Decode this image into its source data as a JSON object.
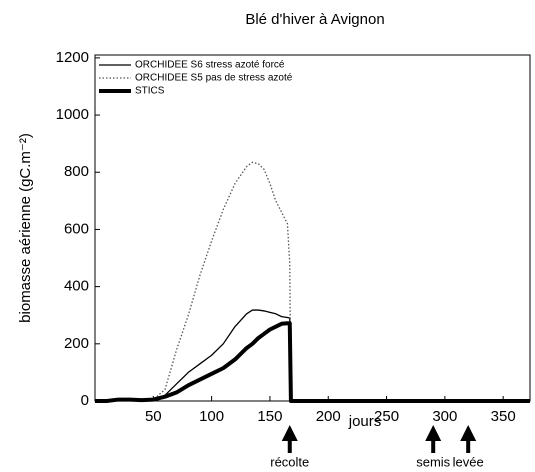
{
  "chart_data": {
    "type": "line",
    "title": "Blé d'hiver à Avignon",
    "x_label": "jours",
    "y_label": "biomasse aérienne (gC.m⁻²)",
    "x": [
      0,
      10,
      20,
      30,
      40,
      50,
      60,
      70,
      80,
      90,
      100,
      110,
      120,
      130,
      135,
      140,
      145,
      150,
      155,
      160,
      165,
      167,
      168,
      373
    ],
    "series": [
      {
        "name": "ORCHIDEE S6 stress azoté forcé",
        "color": "#000000",
        "linewidth": 1.3,
        "dash": "none",
        "values": [
          0,
          0,
          3,
          3,
          2,
          5,
          20,
          60,
          100,
          130,
          160,
          200,
          260,
          305,
          318,
          318,
          315,
          310,
          305,
          295,
          292,
          290,
          0,
          0
        ]
      },
      {
        "name": "ORCHIDEE S5 pas de stress azoté",
        "color": "#555555",
        "linewidth": 1.3,
        "dash": "1.5 2",
        "values": [
          0,
          0,
          3,
          3,
          2,
          5,
          40,
          180,
          300,
          440,
          560,
          670,
          760,
          820,
          835,
          830,
          810,
          760,
          700,
          660,
          620,
          480,
          0,
          0
        ]
      },
      {
        "name": "STICS",
        "color": "#000000",
        "linewidth": 4,
        "dash": "none",
        "values": [
          0,
          0,
          5,
          5,
          3,
          5,
          15,
          30,
          55,
          75,
          95,
          115,
          145,
          185,
          200,
          220,
          235,
          250,
          260,
          270,
          272,
          272,
          0,
          0
        ]
      }
    ],
    "annotations": [
      {
        "label": "récolte",
        "x": 167
      },
      {
        "label": "semis",
        "x": 290
      },
      {
        "label": "levée",
        "x": 320
      }
    ],
    "xlim": [
      0,
      373
    ],
    "ylim": [
      0,
      1210
    ],
    "xticks": [
      50,
      100,
      150,
      200,
      250,
      300,
      350
    ],
    "yticks": [
      0,
      200,
      400,
      600,
      800,
      1000,
      1200
    ]
  }
}
